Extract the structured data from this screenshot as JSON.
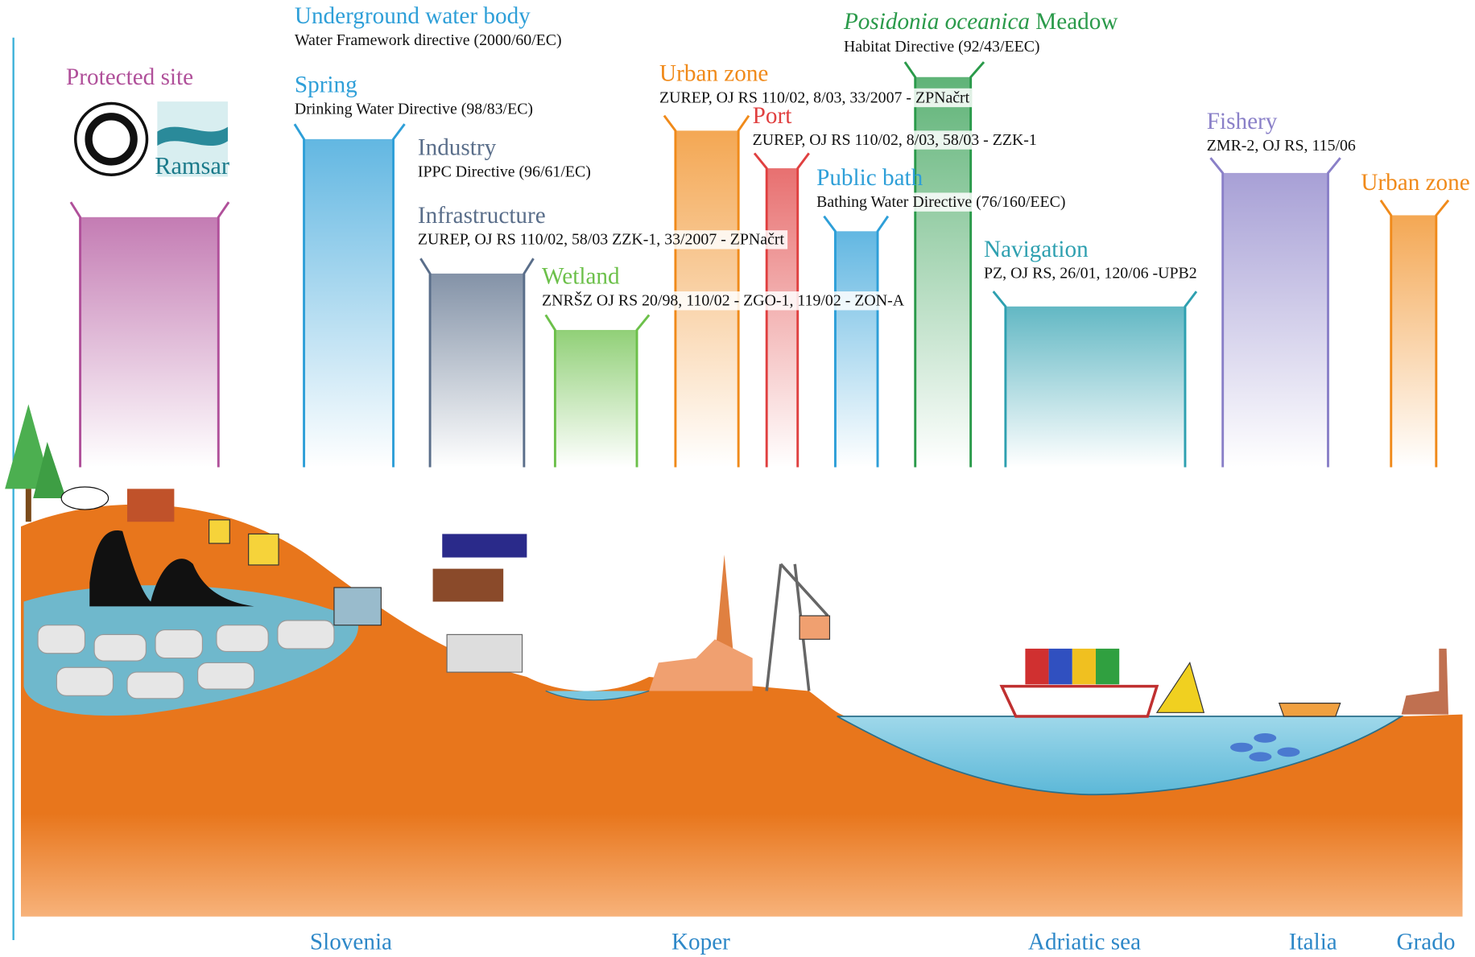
{
  "zones": [
    {
      "title": "Protected site"
    },
    {
      "title": "Underground water body",
      "directive": "Water Framework directive (2000/60/EC)"
    },
    {
      "title": "Spring",
      "directive": "Drinking Water Directive (98/83/EC)"
    },
    {
      "title": "Industry",
      "directive": "IPPC Directive (96/61/EC)"
    },
    {
      "title": "Infrastructure",
      "directive": "ZUREP, OJ RS 110/02, 58/03  ZZK-1, 33/2007 - ZPNačrt"
    },
    {
      "title": "Wetland",
      "directive": "ZNRŠZ OJ RS 20/98, 110/02 - ZGO-1, 119/02 - ZON-A"
    },
    {
      "title": "Urban zone",
      "directive": "ZUREP, OJ RS 110/02, 8/03, 33/2007 - ZPNačrt"
    },
    {
      "title": "Port",
      "directive": "ZUREP, OJ RS 110/02, 8/03, 58/03 - ZZK-1"
    },
    {
      "title": "Public bath",
      "directive": "Bathing Water Directive (76/160/EEC)"
    },
    {
      "title_italic": "Posidonia oceanica",
      "title": "Meadow",
      "directive": "Habitat Directive (92/43/EEC)"
    },
    {
      "title": "Navigation",
      "directive": "PZ, OJ RS, 26/01, 120/06 -UPB2"
    },
    {
      "title": "Fishery",
      "directive": "ZMR-2, OJ RS, 115/06"
    },
    {
      "title": "Urban zone"
    }
  ],
  "logo": "Ramsar",
  "locations": [
    "Slovenia",
    "Koper",
    "Adriatic sea",
    "Italia",
    "Grado"
  ]
}
